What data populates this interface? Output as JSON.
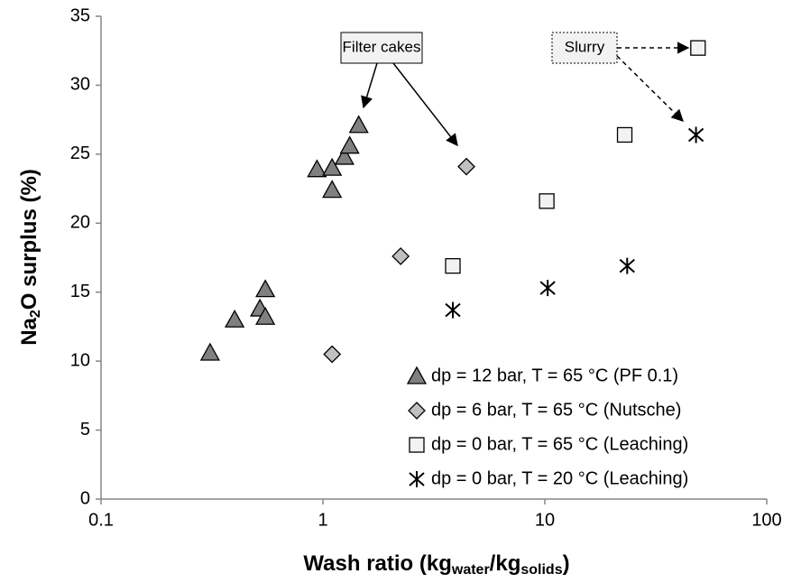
{
  "chart_data": {
    "type": "scatter",
    "xlabel": [
      "Wash ratio (kg",
      "water",
      "/kg",
      "solids",
      ")"
    ],
    "ylabel": [
      "Na",
      "2",
      "O surplus (%)"
    ],
    "xscale": "log",
    "xlim": [
      0.1,
      100
    ],
    "xticks": [
      0.1,
      1,
      10,
      100
    ],
    "ylim": [
      0,
      35
    ],
    "yticks": [
      0,
      5,
      10,
      15,
      20,
      25,
      30,
      35
    ],
    "grid": false,
    "legend": "lower right",
    "annotations": [
      "Filter cakes",
      "Slurry"
    ],
    "series": [
      {
        "name": "dp = 12 bar, T = 65 °C (PF 0.1)",
        "marker": "triangle",
        "color": "#808080",
        "x": [
          0.31,
          0.4,
          0.52,
          0.55,
          0.55,
          0.94,
          1.1,
          1.1,
          1.25,
          1.32,
          1.45
        ],
        "y": [
          10.6,
          13.0,
          13.8,
          13.2,
          15.2,
          23.9,
          24.0,
          22.4,
          24.8,
          25.6,
          27.1
        ]
      },
      {
        "name": "dp = 6 bar, T = 65 °C (Nutsche)",
        "marker": "diamond",
        "color": "#c0c0c0",
        "x": [
          1.1,
          2.24,
          4.43
        ],
        "y": [
          10.5,
          17.6,
          24.1
        ]
      },
      {
        "name": "dp = 0 bar, T = 65 °C (Leaching)",
        "marker": "square",
        "color": "#f2f2f2",
        "x": [
          3.85,
          10.2,
          22.9,
          49
        ],
        "y": [
          16.9,
          21.6,
          26.4,
          32.7
        ]
      },
      {
        "name": "dp = 0 bar, T = 20 °C (Leaching)",
        "marker": "star",
        "color": "#000000",
        "x": [
          3.85,
          10.3,
          23.5,
          48
        ],
        "y": [
          13.7,
          15.3,
          16.9,
          26.4
        ]
      }
    ]
  }
}
